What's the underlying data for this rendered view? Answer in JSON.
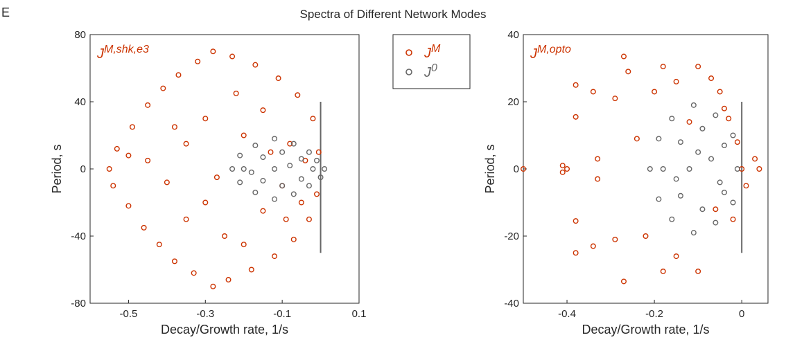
{
  "panel_label": "E",
  "title": "Spectra of Different Network Modes",
  "chart_data": [
    {
      "type": "scatter",
      "annotation": {
        "text": "J",
        "sup": "M,shk,e3"
      },
      "xlabel": "Decay/Growth rate, 1/s",
      "ylabel": "Period, s",
      "xlim": [
        -0.6,
        0.1
      ],
      "ylim": [
        -80,
        80
      ],
      "xticks": [
        -0.5,
        -0.3,
        -0.1,
        0.1
      ],
      "yticks": [
        -80,
        -40,
        0,
        40,
        80
      ],
      "legend": "outside-right",
      "vline": {
        "x": 0,
        "y": [
          -50,
          40
        ],
        "color": "#666666"
      },
      "series": [
        {
          "name": "J",
          "name_sup": "M",
          "color": "#cc3300",
          "x": [
            -0.55,
            -0.54,
            -0.53,
            -0.5,
            -0.49,
            -0.46,
            -0.45,
            -0.42,
            -0.41,
            -0.38,
            -0.37,
            -0.33,
            -0.32,
            -0.28,
            -0.28,
            -0.24,
            -0.23,
            -0.18,
            -0.17,
            -0.12,
            -0.11,
            -0.07,
            -0.06,
            -0.03,
            -0.02,
            -0.01,
            -0.005,
            -0.45,
            -0.4,
            -0.35,
            -0.3,
            -0.3,
            -0.25,
            -0.2,
            -0.15,
            -0.15,
            -0.1,
            -0.08,
            -0.05,
            -0.04,
            -0.38,
            -0.22,
            -0.2,
            -0.35,
            -0.5,
            -0.27,
            -0.13,
            -0.09
          ],
          "y": [
            0,
            -10,
            12,
            -22,
            25,
            -35,
            38,
            -45,
            48,
            -55,
            56,
            -62,
            64,
            -70,
            70,
            -66,
            67,
            -60,
            62,
            -52,
            54,
            -42,
            44,
            -30,
            30,
            -15,
            10,
            5,
            -8,
            15,
            -20,
            30,
            -40,
            20,
            -25,
            35,
            -10,
            15,
            -20,
            5,
            25,
            45,
            -45,
            -30,
            8,
            -5,
            10,
            -30
          ]
        },
        {
          "name": "J",
          "name_sup": "0",
          "color": "#666666",
          "x": [
            -0.23,
            -0.21,
            -0.21,
            -0.17,
            -0.17,
            -0.12,
            -0.12,
            -0.07,
            -0.07,
            -0.03,
            -0.03,
            -0.01,
            0.01,
            0.0,
            -0.2,
            -0.15,
            -0.15,
            -0.1,
            -0.1,
            -0.05,
            -0.05,
            -0.12,
            -0.18,
            -0.08,
            -0.02
          ],
          "y": [
            0,
            8,
            -8,
            14,
            -14,
            18,
            -18,
            15,
            -15,
            10,
            -10,
            5,
            0,
            -5,
            0,
            7,
            -7,
            10,
            -10,
            6,
            -6,
            0,
            -2,
            2,
            0
          ]
        }
      ]
    },
    {
      "type": "scatter",
      "annotation": {
        "text": "J",
        "sup": "M,opto"
      },
      "xlabel": "Decay/Growth rate, 1/s",
      "ylabel": "Period, s",
      "xlim": [
        -0.5,
        0.06
      ],
      "ylim": [
        -40,
        40
      ],
      "xticks": [
        -0.4,
        -0.2,
        0
      ],
      "yticks": [
        -40,
        -20,
        0,
        20,
        40
      ],
      "vline": {
        "x": 0,
        "y": [
          -25,
          20
        ],
        "color": "#666666"
      },
      "series": [
        {
          "color": "#cc3300",
          "x": [
            -0.5,
            -0.41,
            -0.41,
            -0.4,
            -0.38,
            -0.38,
            -0.38,
            -0.38,
            -0.34,
            -0.34,
            -0.33,
            -0.33,
            -0.29,
            -0.29,
            -0.27,
            -0.27,
            -0.26,
            -0.2,
            -0.18,
            -0.18,
            -0.15,
            -0.15,
            -0.1,
            -0.1,
            -0.07,
            -0.05,
            -0.03,
            -0.02,
            -0.01,
            0.0,
            0.01,
            0.03,
            0.04,
            -0.12,
            -0.06,
            -0.04,
            -0.22,
            -0.24
          ],
          "y": [
            0,
            1,
            -1,
            0,
            25,
            -25,
            15.5,
            -15.5,
            23,
            -23,
            3,
            -3,
            21,
            -21,
            33.5,
            -33.5,
            29,
            23,
            30.5,
            -30.5,
            26,
            -26,
            30.5,
            -30.5,
            27,
            23,
            15,
            -15,
            8,
            0,
            -5,
            3,
            0,
            14,
            -12,
            18,
            -20,
            9
          ]
        },
        {
          "color": "#666666",
          "x": [
            -0.21,
            -0.19,
            -0.19,
            -0.16,
            -0.16,
            -0.11,
            -0.11,
            -0.06,
            -0.06,
            -0.02,
            -0.02,
            -0.01,
            -0.18,
            -0.14,
            -0.14,
            -0.09,
            -0.09,
            -0.04,
            -0.04,
            -0.12,
            -0.07,
            -0.15,
            -0.1,
            -0.05
          ],
          "y": [
            0,
            9,
            -9,
            15,
            -15,
            19,
            -19,
            16,
            -16,
            10,
            -10,
            0,
            0,
            8,
            -8,
            12,
            -12,
            7,
            -7,
            0,
            3,
            -3,
            5,
            -4
          ]
        }
      ]
    }
  ]
}
